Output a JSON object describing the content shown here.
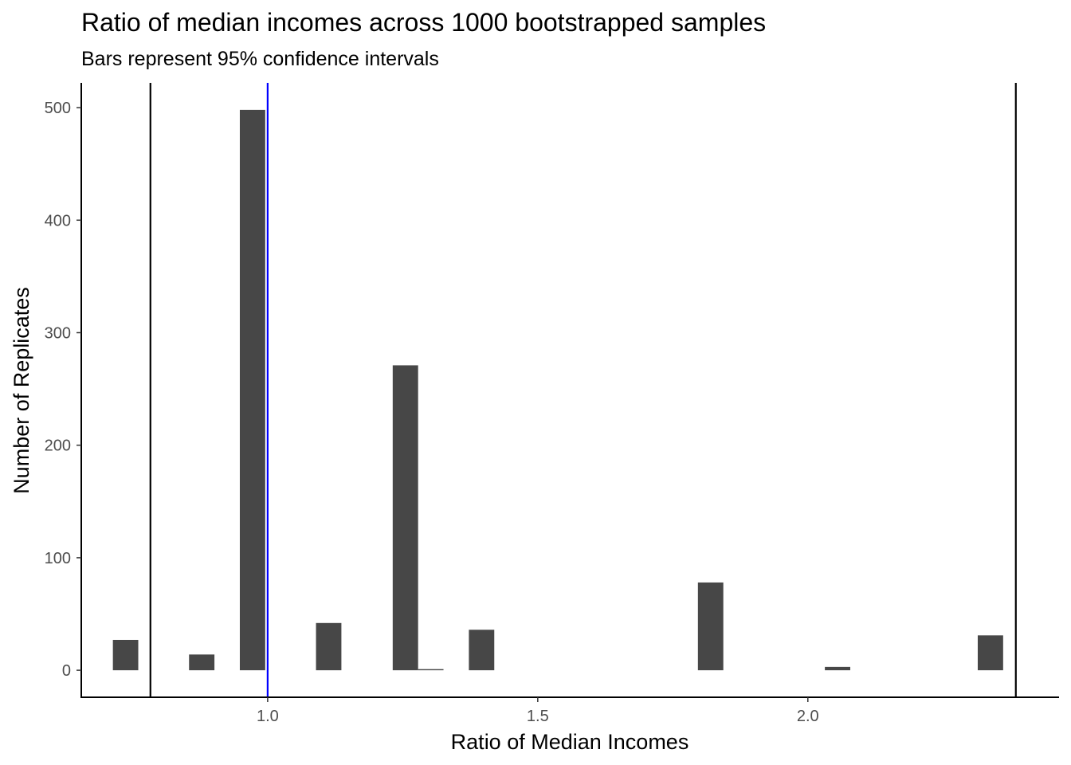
{
  "chart_data": {
    "type": "bar",
    "title": "Ratio of median incomes across 1000 bootstrapped samples",
    "subtitle": "Bars represent 95% confidence intervals",
    "xlabel": "Ratio of Median Incomes",
    "ylabel": "Number of Replicates",
    "xlim": [
      0.655,
      2.465
    ],
    "ylim": [
      -24,
      522
    ],
    "x_ticks": [
      {
        "value": 1.0,
        "label": "1.0"
      },
      {
        "value": 1.5,
        "label": "1.5"
      },
      {
        "value": 2.0,
        "label": "2.0"
      }
    ],
    "y_ticks": [
      {
        "value": 0,
        "label": "0"
      },
      {
        "value": 100,
        "label": "100"
      },
      {
        "value": 200,
        "label": "200"
      },
      {
        "value": 300,
        "label": "300"
      },
      {
        "value": 400,
        "label": "400"
      },
      {
        "value": 500,
        "label": "500"
      }
    ],
    "bin_width": 0.047,
    "bins": [
      {
        "x": 0.737,
        "count": 27
      },
      {
        "x": 0.878,
        "count": 14
      },
      {
        "x": 0.972,
        "count": 498
      },
      {
        "x": 1.113,
        "count": 42
      },
      {
        "x": 1.255,
        "count": 271
      },
      {
        "x": 1.302,
        "count": 1
      },
      {
        "x": 1.396,
        "count": 36
      },
      {
        "x": 1.82,
        "count": 78
      },
      {
        "x": 2.055,
        "count": 3
      },
      {
        "x": 2.338,
        "count": 31
      }
    ],
    "bar_color": "#474747",
    "reference_lines": [
      {
        "name": "ci-lower",
        "x": 0.783,
        "color": "#000000"
      },
      {
        "name": "observed",
        "x": 1.0,
        "color": "#0000ff"
      },
      {
        "name": "ci-upper",
        "x": 2.385,
        "color": "#000000"
      }
    ],
    "grid": false,
    "legend": "none"
  }
}
